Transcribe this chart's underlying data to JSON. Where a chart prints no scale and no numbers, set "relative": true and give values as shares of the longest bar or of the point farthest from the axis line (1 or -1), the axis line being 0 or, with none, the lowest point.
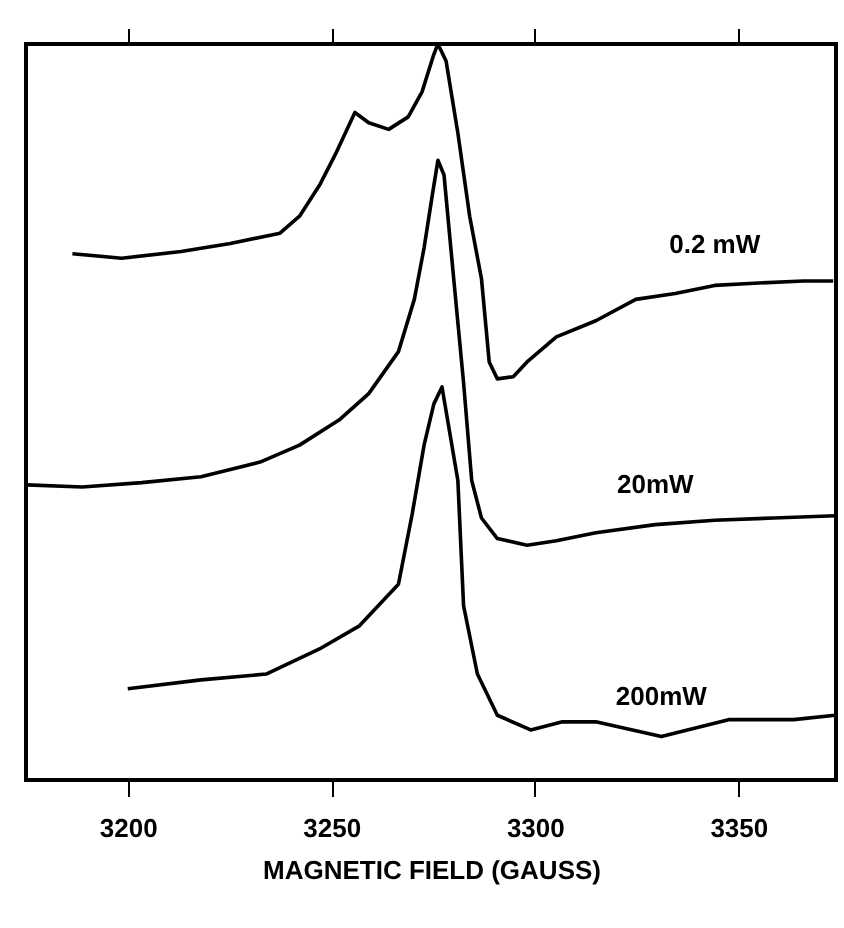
{
  "chart_data": {
    "type": "line",
    "xlabel": "MAGNETIC FIELD (GAUSS)",
    "relative": true,
    "xlim": [
      3175,
      3374
    ],
    "xticks": [
      3200,
      3250,
      3300,
      3350
    ],
    "tick_labels": "x",
    "grid": false,
    "legend": false,
    "marker": "none",
    "line_style": "solid",
    "series": [
      {
        "name": "0.2 mW",
        "color": "#000000",
        "x": [
          3186.4,
          3198.5,
          3213.1,
          3225.2,
          3237.4,
          3242.2,
          3247.1,
          3251.0,
          3255.8,
          3259.2,
          3264.1,
          3268.9,
          3272.3,
          3275.2,
          3276.2,
          3278.2,
          3281.1,
          3284.0,
          3286.9,
          3288.8,
          3290.8,
          3294.7,
          3298.1,
          3305.3,
          3315.0,
          3324.8,
          3334.5,
          3344.2,
          3353.9,
          3366.0,
          3373.3
        ],
        "values": [
          0.715,
          0.709,
          0.718,
          0.729,
          0.743,
          0.766,
          0.808,
          0.85,
          0.907,
          0.893,
          0.884,
          0.901,
          0.935,
          0.986,
          1.0,
          0.977,
          0.879,
          0.766,
          0.681,
          0.568,
          0.545,
          0.548,
          0.568,
          0.602,
          0.624,
          0.653,
          0.661,
          0.672,
          0.675,
          0.678,
          0.678
        ]
      },
      {
        "name": "20mW",
        "color": "#000000",
        "x": [
          3175.2,
          3188.8,
          3203.4,
          3218.0,
          3232.5,
          3242.2,
          3251.9,
          3259.2,
          3266.5,
          3270.4,
          3272.8,
          3274.8,
          3276.2,
          3277.7,
          3279.6,
          3282.5,
          3284.5,
          3286.9,
          3290.8,
          3298.1,
          3305.3,
          3315.0,
          3329.6,
          3344.2,
          3358.7,
          3373.8
        ],
        "values": [
          0.401,
          0.398,
          0.404,
          0.412,
          0.432,
          0.455,
          0.489,
          0.525,
          0.582,
          0.653,
          0.723,
          0.794,
          0.842,
          0.822,
          0.709,
          0.54,
          0.407,
          0.356,
          0.328,
          0.319,
          0.325,
          0.336,
          0.347,
          0.353,
          0.356,
          0.359
        ]
      },
      {
        "name": "200mW",
        "color": "#000000",
        "x": [
          3200.0,
          3218.0,
          3234.0,
          3247.1,
          3256.8,
          3266.5,
          3269.9,
          3272.8,
          3275.2,
          3277.2,
          3281.1,
          3282.5,
          3285.9,
          3290.8,
          3299.0,
          3306.8,
          3315.0,
          3331.1,
          3347.6,
          3363.6,
          3373.8
        ],
        "values": [
          0.124,
          0.136,
          0.144,
          0.178,
          0.209,
          0.266,
          0.362,
          0.455,
          0.511,
          0.534,
          0.407,
          0.237,
          0.144,
          0.088,
          0.068,
          0.079,
          0.079,
          0.059,
          0.082,
          0.082,
          0.088
        ]
      }
    ]
  }
}
